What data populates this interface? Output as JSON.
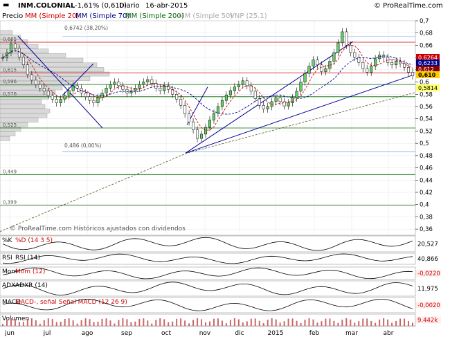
{
  "header": {
    "ticker": "INM.COLONIAL",
    "change": "-1,61% (0,610)",
    "period": "Diario",
    "date": "16-abr-2015",
    "source": "© ProRealTime.com",
    "colors": {
      "bg": "#ffffff",
      "text": "#000000",
      "accent": "#0000aa"
    }
  },
  "legend": {
    "precio": "Precio",
    "mm20": "MM (Simple 20)",
    "mm70": "MM (Simple 70)",
    "mm200": "MM (Simple 200)",
    "mm50": "MM (Simple 50)",
    "vnp": "VNP (25.1)"
  },
  "watermark": "© ProRealTime.com  Históricos ajustados con dividendos",
  "chart_data": {
    "type": "candlestick",
    "x_ticks": [
      "jun",
      "jul",
      "ago",
      "sep",
      "oct",
      "nov",
      "dic",
      "2015",
      "feb",
      "mar",
      "abr"
    ],
    "y_ticks": [
      "0,7",
      "0,68",
      "0,66",
      "0,64",
      "0,62",
      "0,6",
      "0,58",
      "0,56",
      "0,54",
      "0,52",
      "0,5",
      "0,48",
      "0,46",
      "0,44",
      "0,42",
      "0,4",
      "0,38",
      "0,36"
    ],
    "ylim": [
      0.35,
      0.7
    ],
    "last_price": "0,610",
    "price_tags": [
      {
        "label": "0,6264",
        "value": 0.6264,
        "color": "#cc0000"
      },
      {
        "label": "0,6233",
        "value": 0.6233,
        "color": "#000088"
      },
      {
        "label": "0,612",
        "value": 0.612,
        "color": "#880000"
      },
      {
        "label": "0,610",
        "value": 0.61,
        "color": "#ffcc00"
      },
      {
        "label": "0,5814",
        "value": 0.5814,
        "color": "#ffff66"
      }
    ],
    "hlines": [
      {
        "value": 0.665,
        "label": "0,665",
        "color": "#cc0000"
      },
      {
        "value": 0.615,
        "label": "0,615",
        "color": "#cc0000"
      },
      {
        "value": 0.596,
        "label": "0,596",
        "color": "#006600"
      },
      {
        "value": 0.576,
        "label": "0,576",
        "color": "#006600"
      },
      {
        "value": 0.525,
        "label": "0,525",
        "color": "#006600"
      },
      {
        "value": 0.449,
        "label": "0,449",
        "color": "#006600"
      },
      {
        "value": 0.399,
        "label": "0,399",
        "color": "#006600"
      }
    ],
    "fib_top": {
      "value": 0.6742,
      "label": "0,6742 (38,20%)"
    },
    "fib_low": {
      "value": 0.486,
      "label": "0,486 (0,00%)"
    },
    "closes": [
      0.64,
      0.648,
      0.662,
      0.655,
      0.641,
      0.628,
      0.612,
      0.603,
      0.596,
      0.59,
      0.585,
      0.578,
      0.572,
      0.566,
      0.572,
      0.578,
      0.586,
      0.594,
      0.59,
      0.582,
      0.576,
      0.57,
      0.566,
      0.575,
      0.582,
      0.59,
      0.596,
      0.6,
      0.594,
      0.588,
      0.582,
      0.586,
      0.59,
      0.596,
      0.6,
      0.604,
      0.598,
      0.59,
      0.586,
      0.594,
      0.588,
      0.58,
      0.572,
      0.562,
      0.548,
      0.535,
      0.522,
      0.508,
      0.515,
      0.526,
      0.538,
      0.549,
      0.56,
      0.57,
      0.579,
      0.586,
      0.592,
      0.596,
      0.602,
      0.594,
      0.585,
      0.573,
      0.562,
      0.556,
      0.56,
      0.568,
      0.574,
      0.568,
      0.561,
      0.566,
      0.574,
      0.585,
      0.6,
      0.614,
      0.626,
      0.636,
      0.628,
      0.617,
      0.622,
      0.634,
      0.648,
      0.664,
      0.682,
      0.66,
      0.648,
      0.64,
      0.632,
      0.622,
      0.616,
      0.626,
      0.638,
      0.644,
      0.64,
      0.632,
      0.628,
      0.634,
      0.63,
      0.624,
      0.616,
      0.61
    ],
    "volume_label": "9.442k",
    "oscillators": [
      {
        "name": "%K",
        "label": "%D (14 3 5)",
        "value": "20,527"
      },
      {
        "name": "RSI",
        "label": "RSI (14)",
        "value": "40,866"
      },
      {
        "name": "Mom",
        "label": "Mom (12)",
        "value": "-0,0220"
      },
      {
        "name": "ADX",
        "label": "ADXR (14)",
        "value": "11,975"
      },
      {
        "name": "MACD",
        "label": "MACD-, señal  Señal  MACD (12 26 9)",
        "value": "-0,0020"
      },
      {
        "name": "Volumen",
        "label": "Volumen",
        "value": "9.442k"
      }
    ]
  }
}
